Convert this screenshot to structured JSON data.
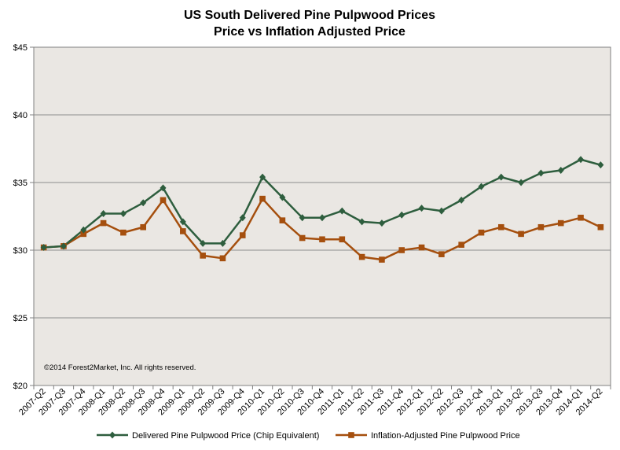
{
  "chart_data": {
    "type": "line",
    "title": "US South Delivered Pine Pulpwood Prices",
    "subtitle": "Price vs Inflation Adjusted Price",
    "xlabel": "",
    "ylabel": "",
    "ylim": [
      20,
      45
    ],
    "yticks": [
      20,
      25,
      30,
      35,
      40,
      45
    ],
    "ytick_labels": [
      "$20",
      "$25",
      "$30",
      "$35",
      "$40",
      "$45"
    ],
    "categories": [
      "2007-Q2",
      "2007-Q3",
      "2007-Q4",
      "2008-Q1",
      "2008-Q2",
      "2008-Q3",
      "2008-Q4",
      "2009-Q1",
      "2009-Q2",
      "2009-Q3",
      "2009-Q4",
      "2010-Q1",
      "2010-Q2",
      "2010-Q3",
      "2010-Q4",
      "2011-Q1",
      "2011-Q2",
      "2011-Q3",
      "2011-Q4",
      "2012-Q1",
      "2012-Q2",
      "2012-Q3",
      "2012-Q4",
      "2013-Q1",
      "2013-Q2",
      "2013-Q3",
      "2013-Q4",
      "2014-Q1",
      "2014-Q2"
    ],
    "series": [
      {
        "name": "Delivered Pine Pulpwood Price (Chip Equivalent)",
        "color": "#2e5e3e",
        "marker": "diamond",
        "values": [
          30.2,
          30.3,
          31.5,
          32.7,
          32.7,
          33.5,
          34.6,
          32.1,
          30.5,
          30.5,
          32.4,
          35.4,
          33.9,
          32.4,
          32.4,
          32.9,
          32.1,
          32.0,
          32.6,
          33.1,
          32.9,
          33.7,
          34.7,
          35.4,
          35.0,
          35.7,
          35.9,
          36.7,
          36.3
        ]
      },
      {
        "name": "Inflation-Adjusted Pine Pulpwood Price",
        "color": "#a54f0e",
        "marker": "square",
        "values": [
          30.2,
          30.3,
          31.2,
          32.0,
          31.3,
          31.7,
          33.7,
          31.4,
          29.6,
          29.4,
          31.1,
          33.8,
          32.2,
          30.9,
          30.8,
          30.8,
          29.5,
          29.3,
          30.0,
          30.2,
          29.7,
          30.4,
          31.3,
          31.7,
          31.2,
          31.7,
          32.0,
          32.4,
          31.7
        ]
      }
    ],
    "grid": true,
    "legend_position": "bottom",
    "plot_background": "#eae7e3",
    "annotation": "©2014 Forest2Market, Inc. All rights reserved."
  }
}
